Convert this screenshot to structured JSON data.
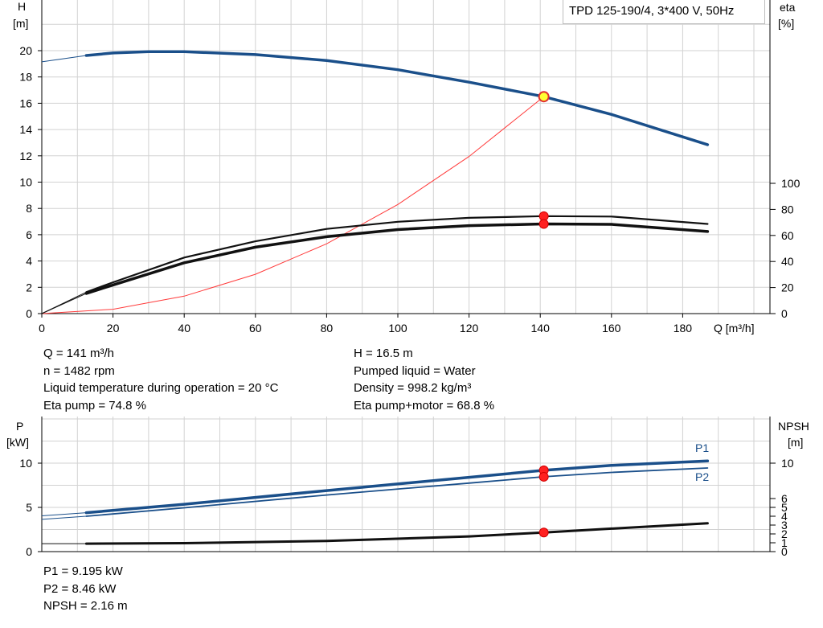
{
  "chart_data": [
    {
      "type": "line",
      "title": "TPD 125-190/4, 3*400 V, 50Hz",
      "xlabel": "Q [m³/h]",
      "ylabel_left": [
        "H",
        "[m]"
      ],
      "ylabel_right": [
        "eta",
        "[%]"
      ],
      "xlim": [
        0,
        200
      ],
      "ylim_left": [
        0,
        22
      ],
      "ylim_right": [
        0,
        100
      ],
      "x_ticks": [
        "0",
        "20",
        "40",
        "60",
        "80",
        "100",
        "120",
        "140",
        "160",
        "180"
      ],
      "y_ticks_left": [
        "0",
        "2",
        "4",
        "6",
        "8",
        "10",
        "12",
        "14",
        "16",
        "18",
        "20"
      ],
      "y_ticks_right": [
        "0",
        "20",
        "40",
        "60",
        "80",
        "100"
      ],
      "grid": true,
      "series": [
        {
          "axis": "left",
          "color": "#1a4f8a",
          "width": 3.5,
          "x": [
            12.5,
            20,
            30,
            40,
            60,
            80,
            100,
            120,
            141,
            160,
            187
          ],
          "y": [
            19.63,
            19.82,
            19.92,
            19.92,
            19.7,
            19.25,
            18.55,
            17.6,
            16.5,
            15.15,
            12.85
          ],
          "ext_x": [
            0,
            12.5
          ],
          "ext_y": [
            19.15,
            19.63
          ]
        },
        {
          "axis": "right",
          "color": "#111111",
          "width": 2.2,
          "x": [
            12.5,
            20,
            40,
            60,
            80,
            100,
            120,
            141,
            160,
            187
          ],
          "y": [
            16.5,
            24,
            43,
            55.5,
            65,
            70.5,
            73.5,
            74.8,
            74.5,
            68.8
          ],
          "ext_x": [
            0,
            12.5
          ],
          "ext_y": [
            0,
            16.5
          ]
        },
        {
          "axis": "right",
          "color": "#111111",
          "width": 3.5,
          "x": [
            12.5,
            20,
            40,
            60,
            80,
            100,
            120,
            141,
            160,
            187
          ],
          "y": [
            15.5,
            22,
            39,
            51,
            59,
            64.5,
            67.5,
            68.8,
            68.5,
            63.0
          ],
          "ext_x": [
            0,
            12.5
          ],
          "ext_y": [
            0,
            15.5
          ]
        }
      ],
      "system_curve": {
        "axis": "left",
        "color": "#ff3b3b",
        "x": [
          0,
          20,
          40,
          60,
          80,
          100,
          120,
          141
        ],
        "y": [
          0,
          0.33,
          1.33,
          2.99,
          5.31,
          8.3,
          11.95,
          16.5
        ]
      },
      "duty_point_h": {
        "x": 141,
        "y": 16.5,
        "fill": "#ffff33",
        "stroke": "#e03030"
      },
      "eta_points": [
        {
          "x": 141,
          "y": 74.8
        },
        {
          "x": 141,
          "y": 68.8
        }
      ],
      "info_left": [
        "Q = 141 m³/h",
        "n = 1482 rpm",
        "Liquid temperature during operation = 20 °C",
        "Eta pump = 74.8 %"
      ],
      "info_right": [
        "H = 16.5 m",
        "Pumped liquid = Water",
        "Density = 998.2 kg/m³",
        "Eta pump+motor = 68.8 %"
      ]
    },
    {
      "type": "line",
      "xlim": [
        0,
        200
      ],
      "ylim_left": [
        0,
        12
      ],
      "ylabel_left": [
        "P",
        "[kW]"
      ],
      "ylabel_right": [
        "NPSH",
        "[m]"
      ],
      "y_ticks_left": [
        "0",
        "5",
        "10"
      ],
      "y_ticks_right": [
        "0",
        "1",
        "2",
        "3",
        "4",
        "5",
        "6",
        "10"
      ],
      "grid": true,
      "series": [
        {
          "name": "P1",
          "color": "#1a4f8a",
          "width": 3.5,
          "x": [
            12.5,
            40,
            80,
            120,
            141,
            160,
            187
          ],
          "y": [
            4.4,
            5.35,
            6.9,
            8.4,
            9.195,
            9.75,
            10.25
          ],
          "ext_x": [
            0,
            12.5
          ],
          "ext_y": [
            4.05,
            4.4
          ]
        },
        {
          "name": "P2",
          "color": "#1a4f8a",
          "width": 1.8,
          "x": [
            12.5,
            40,
            80,
            120,
            141,
            160,
            187
          ],
          "y": [
            4.0,
            4.95,
            6.4,
            7.75,
            8.46,
            8.95,
            9.45
          ],
          "ext_x": [
            0,
            12.5
          ],
          "ext_y": [
            3.65,
            4.0
          ]
        },
        {
          "name": "",
          "color": "#111111",
          "width": 3,
          "x": [
            12.5,
            40,
            80,
            120,
            141,
            160,
            187
          ],
          "y": [
            0.9,
            0.95,
            1.2,
            1.72,
            2.16,
            2.6,
            3.2
          ],
          "ext_x": [
            0,
            12.5
          ],
          "ext_y": [
            0.9,
            0.9
          ]
        }
      ],
      "points": [
        {
          "x": 141,
          "y": 9.195
        },
        {
          "x": 141,
          "y": 8.46
        },
        {
          "x": 141,
          "y": 2.16
        }
      ],
      "info": [
        "P1 = 9.195 kW",
        "P2 = 8.46 kW",
        "NPSH = 2.16 m"
      ]
    }
  ]
}
